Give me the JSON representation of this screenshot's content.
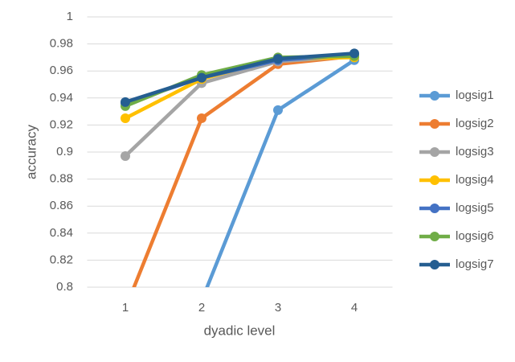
{
  "chart_data": {
    "type": "line",
    "x_label": "dyadic level",
    "y_label": "accuracy",
    "categories": [
      "1",
      "2",
      "3",
      "4"
    ],
    "series": [
      {
        "name": "logsig1",
        "color": "#5b9bd5",
        "values": [
          null,
          0.79,
          0.931,
          0.968
        ]
      },
      {
        "name": "logsig2",
        "color": "#ed7d31",
        "values": [
          0.784,
          0.925,
          0.965,
          0.971
        ]
      },
      {
        "name": "logsig3",
        "color": "#a5a5a5",
        "values": [
          0.897,
          0.951,
          0.967,
          0.971
        ]
      },
      {
        "name": "logsig4",
        "color": "#ffc000",
        "values": [
          0.925,
          0.954,
          0.969,
          0.97
        ]
      },
      {
        "name": "logsig5",
        "color": "#4472c4",
        "values": [
          0.936,
          0.955,
          0.968,
          0.972
        ]
      },
      {
        "name": "logsig6",
        "color": "#70ad47",
        "values": [
          0.934,
          0.957,
          0.97,
          0.971
        ]
      },
      {
        "name": "logsig7",
        "color": "#255e91",
        "values": [
          0.937,
          0.955,
          0.969,
          0.973
        ]
      }
    ],
    "ylim": [
      0.8,
      1
    ],
    "yticks": [
      0.8,
      0.82,
      0.84,
      0.86,
      0.88,
      0.9,
      0.92,
      0.94,
      0.96,
      0.98,
      1
    ],
    "grid": true,
    "legend": "right"
  }
}
